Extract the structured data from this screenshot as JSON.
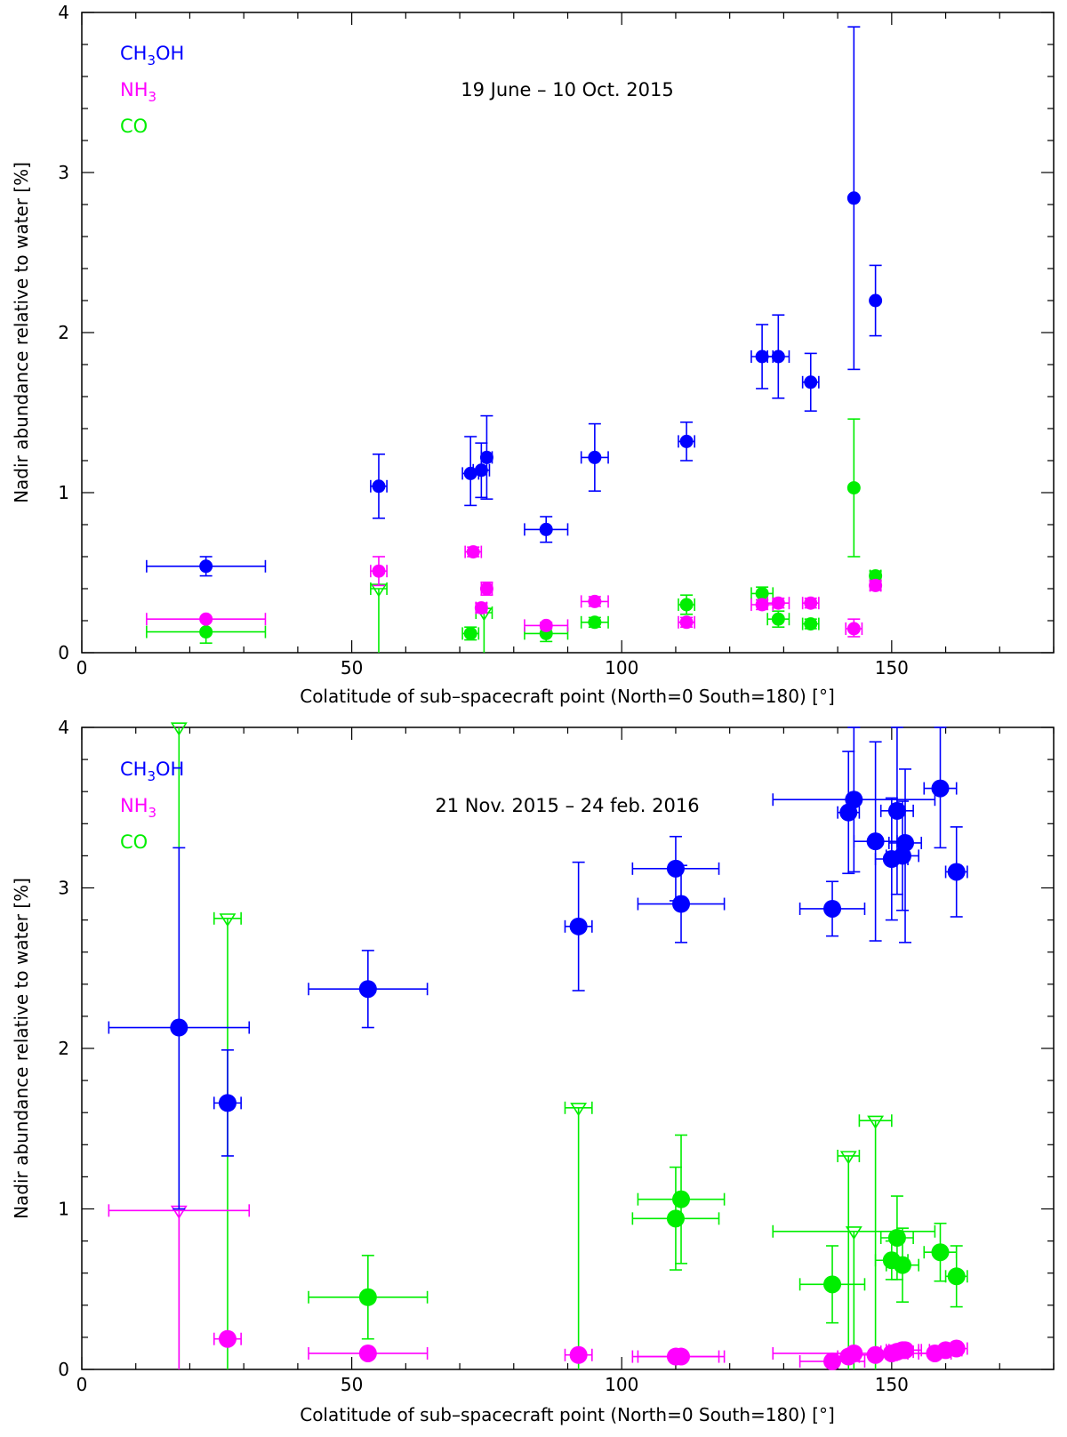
{
  "colors": {
    "CH3OH": "#0000ff",
    "NH3": "#ff00ff",
    "CO": "#00ee00"
  },
  "chart_data": [
    {
      "type": "scatter",
      "title": "19 June – 10 Oct. 2015",
      "xlabel": "Colatitude of sub–spacecraft point (North=0 South=180) [°]",
      "ylabel": "Nadir abundance relative to water [%]",
      "xlim": [
        0,
        180
      ],
      "ylim": [
        0,
        4
      ],
      "xticks": [
        0,
        50,
        100,
        150
      ],
      "yticks": [
        0,
        1,
        2,
        3,
        4
      ],
      "legend": [
        {
          "key": "CH3OH",
          "main": "CH",
          "sub": "3",
          "tail": "OH"
        },
        {
          "key": "NH3",
          "main": "NH",
          "sub": "3",
          "tail": ""
        },
        {
          "key": "CO",
          "main": "CO",
          "sub": "",
          "tail": ""
        }
      ],
      "marker_size": "small",
      "series": [
        {
          "name": "CH3OH",
          "points": [
            {
              "x": 23,
              "y": 0.54,
              "xerr": 11,
              "ylo": 0.48,
              "yhi": 0.6
            },
            {
              "x": 55,
              "y": 1.04,
              "xerr": 1.5,
              "ylo": 0.84,
              "yhi": 1.24
            },
            {
              "x": 72,
              "y": 1.12,
              "xerr": 1.5,
              "ylo": 0.92,
              "yhi": 1.35
            },
            {
              "x": 74,
              "y": 1.14,
              "xerr": 1.5,
              "ylo": 0.97,
              "yhi": 1.31
            },
            {
              "x": 75,
              "y": 1.22,
              "xerr": 1,
              "ylo": 0.96,
              "yhi": 1.48
            },
            {
              "x": 86,
              "y": 0.77,
              "xerr": 4,
              "ylo": 0.69,
              "yhi": 0.85
            },
            {
              "x": 95,
              "y": 1.22,
              "xerr": 2.5,
              "ylo": 1.01,
              "yhi": 1.43
            },
            {
              "x": 112,
              "y": 1.32,
              "xerr": 1.5,
              "ylo": 1.2,
              "yhi": 1.44
            },
            {
              "x": 126,
              "y": 1.85,
              "xerr": 2,
              "ylo": 1.65,
              "yhi": 2.05
            },
            {
              "x": 129,
              "y": 1.85,
              "xerr": 2,
              "ylo": 1.59,
              "yhi": 2.11
            },
            {
              "x": 135,
              "y": 1.69,
              "xerr": 1.5,
              "ylo": 1.51,
              "yhi": 1.87
            },
            {
              "x": 143,
              "y": 2.84,
              "xerr": 0,
              "ylo": 1.77,
              "yhi": 3.91
            },
            {
              "x": 147,
              "y": 2.2,
              "xerr": 0,
              "ylo": 1.98,
              "yhi": 2.42
            }
          ]
        },
        {
          "name": "NH3",
          "points": [
            {
              "x": 23,
              "y": 0.21,
              "xerr": 11,
              "ylo": 0.21,
              "yhi": 0.21
            },
            {
              "x": 55,
              "y": 0.51,
              "xerr": 1.5,
              "ylo": 0.42,
              "yhi": 0.6
            },
            {
              "x": 72.5,
              "y": 0.63,
              "xerr": 1.5,
              "ylo": 0.6,
              "yhi": 0.66
            },
            {
              "x": 74,
              "y": 0.28,
              "xerr": 1,
              "ylo": 0.25,
              "yhi": 0.31
            },
            {
              "x": 75,
              "y": 0.4,
              "xerr": 1,
              "ylo": 0.36,
              "yhi": 0.44
            },
            {
              "x": 86,
              "y": 0.17,
              "xerr": 4,
              "ylo": 0.15,
              "yhi": 0.19
            },
            {
              "x": 95,
              "y": 0.32,
              "xerr": 2.5,
              "ylo": 0.29,
              "yhi": 0.35
            },
            {
              "x": 112,
              "y": 0.19,
              "xerr": 1.5,
              "ylo": 0.16,
              "yhi": 0.22
            },
            {
              "x": 126,
              "y": 0.3,
              "xerr": 2,
              "ylo": 0.27,
              "yhi": 0.33
            },
            {
              "x": 129,
              "y": 0.31,
              "xerr": 2,
              "ylo": 0.28,
              "yhi": 0.34
            },
            {
              "x": 135,
              "y": 0.31,
              "xerr": 1.5,
              "ylo": 0.28,
              "yhi": 0.34
            },
            {
              "x": 143,
              "y": 0.15,
              "xerr": 1.5,
              "ylo": 0.1,
              "yhi": 0.21
            },
            {
              "x": 147,
              "y": 0.42,
              "xerr": 1,
              "ylo": 0.39,
              "yhi": 0.45
            }
          ]
        },
        {
          "name": "CO",
          "points": [
            {
              "x": 23,
              "y": 0.13,
              "xerr": 11,
              "ylo": 0.06,
              "yhi": 0.2
            },
            {
              "x": 72,
              "y": 0.12,
              "xerr": 1.5,
              "ylo": 0.08,
              "yhi": 0.16
            },
            {
              "x": 86,
              "y": 0.12,
              "xerr": 4,
              "ylo": 0.07,
              "yhi": 0.17
            },
            {
              "x": 95,
              "y": 0.19,
              "xerr": 2.5,
              "ylo": 0.16,
              "yhi": 0.22
            },
            {
              "x": 112,
              "y": 0.3,
              "xerr": 1.5,
              "ylo": 0.24,
              "yhi": 0.36
            },
            {
              "x": 126,
              "y": 0.37,
              "xerr": 2,
              "ylo": 0.33,
              "yhi": 0.41
            },
            {
              "x": 129,
              "y": 0.21,
              "xerr": 2,
              "ylo": 0.16,
              "yhi": 0.26
            },
            {
              "x": 135,
              "y": 0.18,
              "xerr": 1.5,
              "ylo": 0.15,
              "yhi": 0.21
            },
            {
              "x": 143,
              "y": 1.03,
              "xerr": 0,
              "ylo": 0.6,
              "yhi": 1.46
            },
            {
              "x": 147,
              "y": 0.48,
              "xerr": 1,
              "ylo": 0.45,
              "yhi": 0.51
            }
          ]
        }
      ],
      "upper_limits": [
        {
          "name": "CO",
          "x": 55,
          "y": 0.4,
          "xerr": 1.5
        },
        {
          "name": "CO",
          "x": 74.5,
          "y": 0.25,
          "xerr": 1.5
        }
      ]
    },
    {
      "type": "scatter",
      "title": "21 Nov. 2015 – 24 feb. 2016",
      "xlabel": "Colatitude of sub–spacecraft point (North=0 South=180) [°]",
      "ylabel": "Nadir abundance relative to water [%]",
      "xlim": [
        0,
        180
      ],
      "ylim": [
        0,
        4
      ],
      "xticks": [
        0,
        50,
        100,
        150
      ],
      "yticks": [
        0,
        1,
        2,
        3,
        4
      ],
      "legend": [
        {
          "key": "CH3OH",
          "main": "CH",
          "sub": "3",
          "tail": "OH"
        },
        {
          "key": "NH3",
          "main": "NH",
          "sub": "3",
          "tail": ""
        },
        {
          "key": "CO",
          "main": "CO",
          "sub": "",
          "tail": ""
        }
      ],
      "marker_size": "large",
      "series": [
        {
          "name": "CH3OH",
          "points": [
            {
              "x": 18,
              "y": 2.13,
              "xerr": 13,
              "ylo": 1.0,
              "yhi": 3.25
            },
            {
              "x": 27,
              "y": 1.66,
              "xerr": 2.5,
              "ylo": 1.33,
              "yhi": 1.99
            },
            {
              "x": 53,
              "y": 2.37,
              "xerr": 11,
              "ylo": 2.13,
              "yhi": 2.61
            },
            {
              "x": 92,
              "y": 2.76,
              "xerr": 2.5,
              "ylo": 2.36,
              "yhi": 3.16
            },
            {
              "x": 110,
              "y": 3.12,
              "xerr": 8,
              "ylo": 2.92,
              "yhi": 3.32
            },
            {
              "x": 111,
              "y": 2.9,
              "xerr": 8,
              "ylo": 2.66,
              "yhi": 3.14
            },
            {
              "x": 139,
              "y": 2.87,
              "xerr": 6,
              "ylo": 2.7,
              "yhi": 3.04
            },
            {
              "x": 142,
              "y": 3.47,
              "xerr": 2,
              "ylo": 3.09,
              "yhi": 3.85
            },
            {
              "x": 143,
              "y": 3.55,
              "xerr": 15,
              "ylo": 3.1,
              "yhi": 4.0
            },
            {
              "x": 147,
              "y": 3.29,
              "xerr": 4,
              "ylo": 2.67,
              "yhi": 3.91
            },
            {
              "x": 150,
              "y": 3.18,
              "xerr": 3,
              "ylo": 2.8,
              "yhi": 3.56
            },
            {
              "x": 151,
              "y": 3.48,
              "xerr": 3,
              "ylo": 2.96,
              "yhi": 4.0
            },
            {
              "x": 152,
              "y": 3.2,
              "xerr": 3,
              "ylo": 2.86,
              "yhi": 3.54
            },
            {
              "x": 152.5,
              "y": 3.28,
              "xerr": 3,
              "ylo": 2.66,
              "yhi": 3.74
            },
            {
              "x": 159,
              "y": 3.62,
              "xerr": 3,
              "ylo": 3.25,
              "yhi": 4.0
            },
            {
              "x": 162,
              "y": 3.1,
              "xerr": 2,
              "ylo": 2.82,
              "yhi": 3.38
            }
          ]
        },
        {
          "name": "NH3",
          "points": [
            {
              "x": 27,
              "y": 0.19,
              "xerr": 2.5,
              "ylo": 0.16,
              "yhi": 0.22
            },
            {
              "x": 53,
              "y": 0.1,
              "xerr": 11,
              "ylo": 0.07,
              "yhi": 0.13
            },
            {
              "x": 92,
              "y": 0.09,
              "xerr": 2.5,
              "ylo": 0.06,
              "yhi": 0.12
            },
            {
              "x": 110,
              "y": 0.08,
              "xerr": 8,
              "ylo": 0.05,
              "yhi": 0.11
            },
            {
              "x": 111,
              "y": 0.08,
              "xerr": 8,
              "ylo": 0.05,
              "yhi": 0.11
            },
            {
              "x": 139,
              "y": 0.05,
              "xerr": 6,
              "ylo": 0.02,
              "yhi": 0.08
            },
            {
              "x": 142,
              "y": 0.08,
              "xerr": 2,
              "ylo": 0.05,
              "yhi": 0.11
            },
            {
              "x": 143,
              "y": 0.1,
              "xerr": 15,
              "ylo": 0.07,
              "yhi": 0.13
            },
            {
              "x": 147,
              "y": 0.09,
              "xerr": 4,
              "ylo": 0.06,
              "yhi": 0.12
            },
            {
              "x": 150,
              "y": 0.1,
              "xerr": 3,
              "ylo": 0.07,
              "yhi": 0.13
            },
            {
              "x": 151,
              "y": 0.11,
              "xerr": 3,
              "ylo": 0.08,
              "yhi": 0.14
            },
            {
              "x": 152,
              "y": 0.12,
              "xerr": 3,
              "ylo": 0.09,
              "yhi": 0.15
            },
            {
              "x": 152.5,
              "y": 0.12,
              "xerr": 3,
              "ylo": 0.09,
              "yhi": 0.15
            },
            {
              "x": 158,
              "y": 0.1,
              "xerr": 3,
              "ylo": 0.07,
              "yhi": 0.13
            },
            {
              "x": 160,
              "y": 0.12,
              "xerr": 3,
              "ylo": 0.09,
              "yhi": 0.15
            },
            {
              "x": 162,
              "y": 0.13,
              "xerr": 2,
              "ylo": 0.1,
              "yhi": 0.16
            }
          ]
        },
        {
          "name": "CO",
          "points": [
            {
              "x": 53,
              "y": 0.45,
              "xerr": 11,
              "ylo": 0.19,
              "yhi": 0.71
            },
            {
              "x": 110,
              "y": 0.94,
              "xerr": 8,
              "ylo": 0.62,
              "yhi": 1.26
            },
            {
              "x": 111,
              "y": 1.06,
              "xerr": 8,
              "ylo": 0.66,
              "yhi": 1.46
            },
            {
              "x": 139,
              "y": 0.53,
              "xerr": 6,
              "ylo": 0.29,
              "yhi": 0.77
            },
            {
              "x": 150,
              "y": 0.68,
              "xerr": 3,
              "ylo": 0.56,
              "yhi": 0.8
            },
            {
              "x": 151,
              "y": 0.82,
              "xerr": 3,
              "ylo": 0.56,
              "yhi": 1.08
            },
            {
              "x": 152,
              "y": 0.65,
              "xerr": 3,
              "ylo": 0.42,
              "yhi": 0.88
            },
            {
              "x": 159,
              "y": 0.73,
              "xerr": 3,
              "ylo": 0.55,
              "yhi": 0.91
            },
            {
              "x": 162,
              "y": 0.58,
              "xerr": 2,
              "ylo": 0.39,
              "yhi": 0.77
            }
          ]
        }
      ],
      "upper_limits": [
        {
          "name": "CO",
          "x": 18,
          "y": 4.0,
          "xerr": 0
        },
        {
          "name": "CO",
          "x": 27,
          "y": 2.81,
          "xerr": 2.5
        },
        {
          "name": "CO",
          "x": 92,
          "y": 1.63,
          "xerr": 2.5
        },
        {
          "name": "CO",
          "x": 142,
          "y": 1.33,
          "xerr": 2
        },
        {
          "name": "CO",
          "x": 143,
          "y": 0.86,
          "xerr": 15
        },
        {
          "name": "CO",
          "x": 147,
          "y": 1.55,
          "xerr": 3
        },
        {
          "name": "NH3",
          "x": 18,
          "y": 0.99,
          "xerr": 13
        }
      ]
    }
  ]
}
